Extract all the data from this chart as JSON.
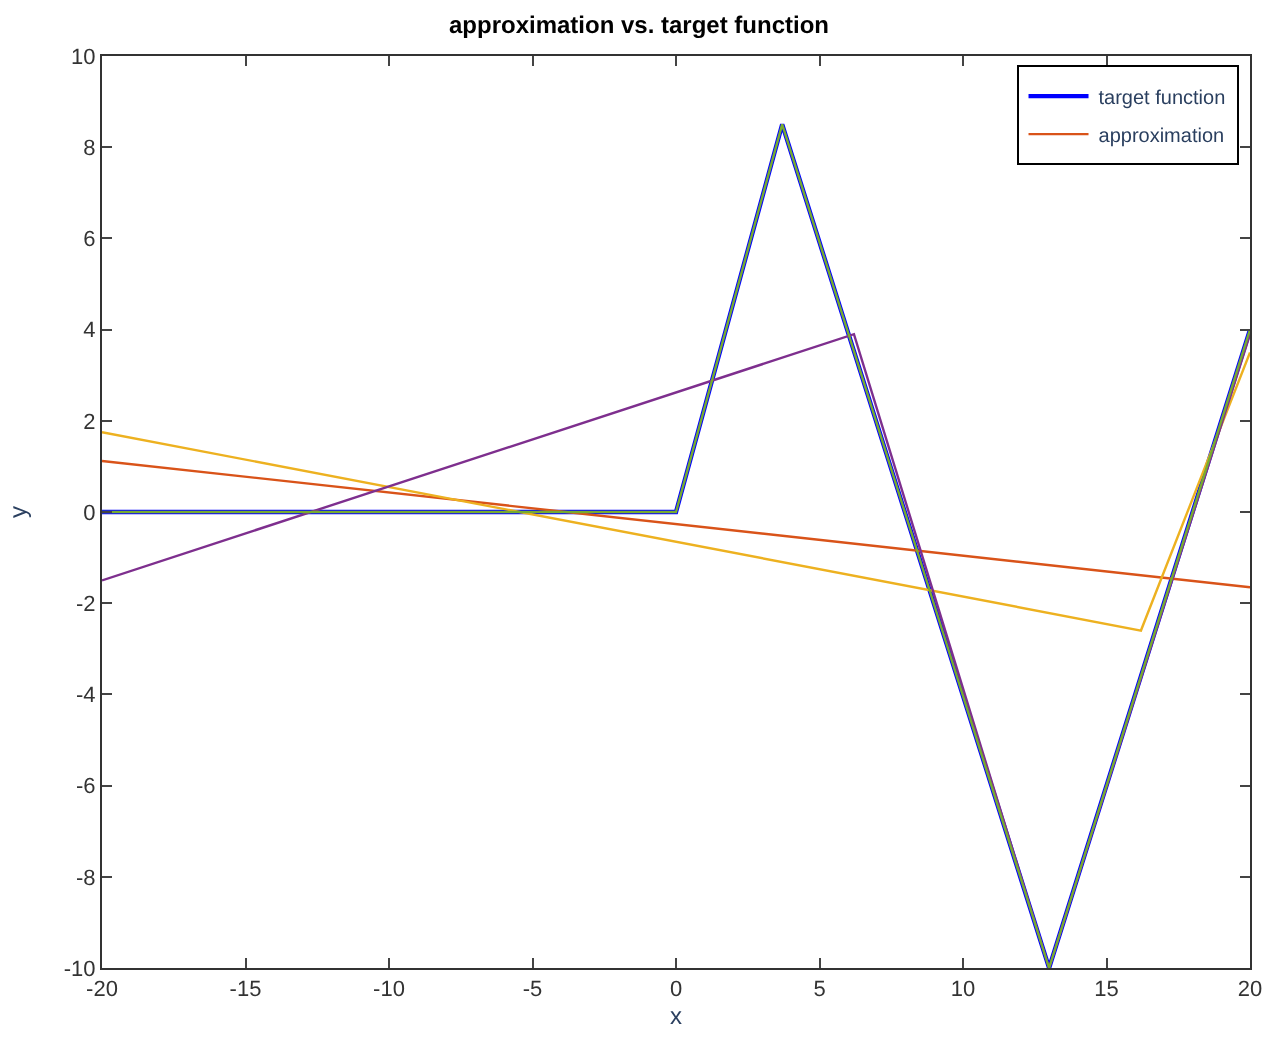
{
  "chart_data": {
    "type": "line",
    "title": "approximation vs. target function",
    "xlabel": "x",
    "ylabel": "y",
    "xlim": [
      -20,
      20
    ],
    "xticks": [
      -20,
      -15,
      -10,
      -5,
      0,
      5,
      10,
      15,
      20
    ],
    "ylim": [
      -10,
      10
    ],
    "yticks": [
      -10,
      -8,
      -6,
      -4,
      -2,
      0,
      2,
      4,
      6,
      8,
      10
    ],
    "legend": "top right",
    "series": [
      {
        "name": "target function",
        "color": "#0000ff",
        "x": [
          -20,
          0,
          3.7,
          13,
          20
        ],
        "values": [
          0,
          0,
          8.5,
          -10,
          4
        ]
      },
      {
        "name": "approximation",
        "color": "#d95319",
        "x": [
          -20,
          20
        ],
        "values": [
          1.12,
          -1.65
        ]
      },
      {
        "color": "#edb120",
        "x": [
          -20,
          16.2,
          20
        ],
        "values": [
          1.75,
          -2.6,
          3.5
        ]
      },
      {
        "color": "#7e2f8e",
        "x": [
          -20,
          6.2,
          13,
          20
        ],
        "values": [
          -1.5,
          3.9,
          -10,
          3.9
        ]
      },
      {
        "color": "#77ac30",
        "x": [
          -20,
          0,
          3.7,
          13,
          20
        ],
        "values": [
          0,
          0,
          8.5,
          -10,
          4
        ]
      }
    ]
  }
}
